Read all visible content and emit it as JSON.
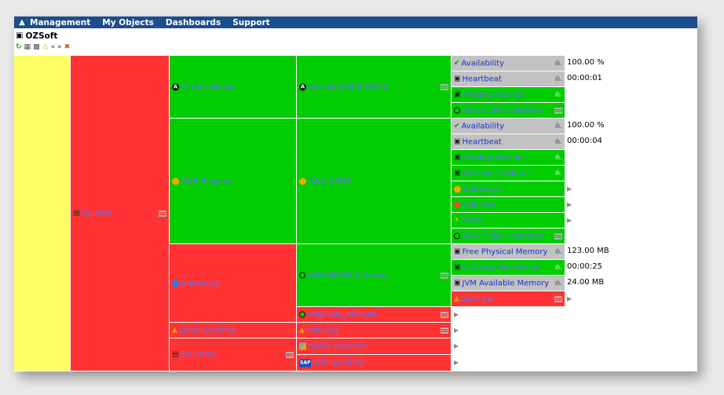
{
  "menu": {
    "items": [
      {
        "name": "menu-management",
        "label": "Management"
      },
      {
        "name": "menu-my-objects",
        "label": "My Objects"
      },
      {
        "name": "menu-dashboards",
        "label": "Dashboards"
      },
      {
        "name": "menu-support",
        "label": "Support"
      }
    ]
  },
  "title": "OZSoft",
  "toolbar": {
    "icons": [
      "refresh-icon",
      "tree-icon",
      "tree-expand-icon",
      "warning-icon",
      "collapse-icon",
      "expand-icon",
      "pin-icon"
    ]
  },
  "colors": {
    "ok": "#00cc00",
    "error": "#ff3333",
    "unknown": "#ffff66",
    "neutral": "#c2c2c2",
    "menubar": "#1c4d8c"
  },
  "nodes": {
    "on_aws": "On-AWS",
    "ansible_nodes": "Ansible Nodes",
    "ansible_aws_demo": "Ansible@AWS-DEMO",
    "aws_regions": "AWS Regions",
    "aws_demo": "AWS-DEMO",
    "gateways": "Gateways",
    "aws_demo_gateway": "AWS-DEMO Gateway",
    "aws_test_ami_gw": "AWS-Test_AMI-GW",
    "linux_systems": "Linux Systems",
    "ozitc_gw": "ozitc-gw",
    "s4hana": "S/4HANA",
    "hana_systems": "HANA Systems",
    "sap_systems": "SAP Systems"
  },
  "metrics": {
    "availability": "Availability",
    "heartbeat": "Heartbeat",
    "missing_account": "Missing Account",
    "aws_demo_gateway": "AWS-DEMO Gateway",
    "retriever_failures": "Retriever Failures",
    "gateways": "Gateways",
    "volumes": "Volumes",
    "vpcs": "VPCs",
    "free_physical_memory": "Free Physical Memory",
    "gateway_heartbeat": "Gateway Heartbeat",
    "jvm_available_memory": "JVM Available Memory",
    "ozitc_gw": "ozitc-gw"
  },
  "values": {
    "ansible_availability": "100.00 %",
    "ansible_heartbeat": "00:00:01",
    "demo_availability": "100.00 %",
    "demo_heartbeat": "00:00:04",
    "free_physical_memory": "123.00 MB",
    "gateway_heartbeat": "00:00:25",
    "jvm_available_memory": "24.00 MB"
  }
}
